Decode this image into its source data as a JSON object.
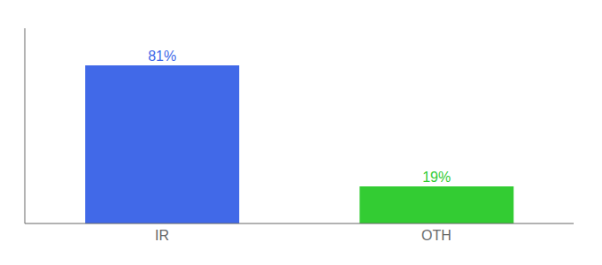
{
  "chart_data": {
    "type": "bar",
    "categories": [
      "IR",
      "OTH"
    ],
    "values": [
      81,
      19
    ],
    "colors": [
      "#4169e8",
      "#33cc33"
    ],
    "value_labels": [
      "81%",
      "19%"
    ],
    "data_labels": true,
    "ylim": [
      0,
      100
    ],
    "yticks": [],
    "tick_labels": "x",
    "grid": false
  }
}
